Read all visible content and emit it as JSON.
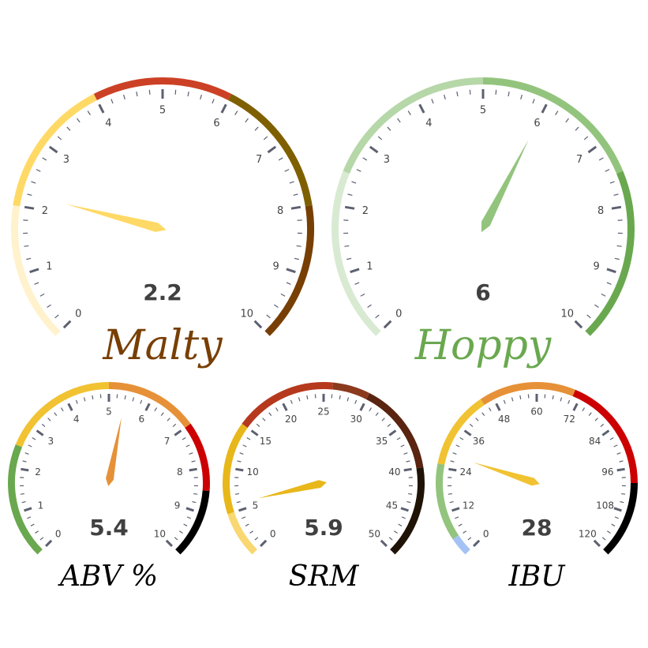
{
  "chart_data": [
    {
      "type": "gauge",
      "title": "Malty",
      "title_color": "#783f04",
      "min": 0,
      "max": 10,
      "major_step": 1,
      "minor_per_major": 5,
      "value": 2.2,
      "value_label": "2.2",
      "needle_color": "#ffd966",
      "bands": [
        {
          "from": 0,
          "to": 2,
          "color": "#fff2cc"
        },
        {
          "from": 2,
          "to": 4,
          "color": "#ffd966"
        },
        {
          "from": 4,
          "to": 6,
          "color": "#cc4125"
        },
        {
          "from": 6,
          "to": 8,
          "color": "#7f6000"
        },
        {
          "from": 8,
          "to": 10,
          "color": "#783f04"
        }
      ],
      "tick_labels": [
        "0",
        "1",
        "2",
        "3",
        "4",
        "5",
        "6",
        "7",
        "8",
        "9",
        "10"
      ]
    },
    {
      "type": "gauge",
      "title": "Hoppy",
      "title_color": "#6aa84f",
      "min": 0,
      "max": 10,
      "major_step": 1,
      "minor_per_major": 5,
      "value": 6,
      "value_label": "6",
      "needle_color": "#93c47d",
      "bands": [
        {
          "from": 0,
          "to": 2.5,
          "color": "#d9ead3"
        },
        {
          "from": 2.5,
          "to": 5,
          "color": "#b6d7a8"
        },
        {
          "from": 5,
          "to": 7.5,
          "color": "#93c47d"
        },
        {
          "from": 7.5,
          "to": 10,
          "color": "#6aa84f"
        }
      ],
      "tick_labels": [
        "0",
        "1",
        "2",
        "3",
        "4",
        "5",
        "6",
        "7",
        "8",
        "9",
        "10"
      ]
    },
    {
      "type": "gauge",
      "title": "ABV %",
      "title_color": "#000000",
      "min": 0,
      "max": 10,
      "major_step": 1,
      "minor_per_major": 5,
      "value": 5.4,
      "value_label": "5.4",
      "needle_color": "#e69138",
      "bands": [
        {
          "from": 0,
          "to": 2.5,
          "color": "#6aa84f"
        },
        {
          "from": 2.5,
          "to": 5,
          "color": "#f1c232"
        },
        {
          "from": 5,
          "to": 7,
          "color": "#e69138"
        },
        {
          "from": 7,
          "to": 8.5,
          "color": "#cc0000"
        },
        {
          "from": 8.5,
          "to": 10,
          "color": "#000000"
        }
      ],
      "tick_labels": [
        "0",
        "1",
        "2",
        "3",
        "4",
        "5",
        "6",
        "7",
        "8",
        "9",
        "10"
      ]
    },
    {
      "type": "gauge",
      "title": "SRM",
      "title_color": "#000000",
      "min": 0,
      "max": 50,
      "major_step": 5,
      "minor_per_major": 5,
      "value": 5.9,
      "value_label": "5.9",
      "needle_color": "#e8b71a",
      "bands": [
        {
          "from": 0,
          "to": 5,
          "color": "#f9d771"
        },
        {
          "from": 5,
          "to": 15,
          "color": "#e8b71a"
        },
        {
          "from": 15,
          "to": 26,
          "color": "#b6391e"
        },
        {
          "from": 26,
          "to": 30,
          "color": "#8b3a1e"
        },
        {
          "from": 30,
          "to": 40,
          "color": "#5a2410"
        },
        {
          "from": 40,
          "to": 50,
          "color": "#1f1305"
        }
      ],
      "tick_labels": [
        "0",
        "5",
        "10",
        "15",
        "20",
        "25",
        "30",
        "35",
        "40",
        "45",
        "50"
      ]
    },
    {
      "type": "gauge",
      "title": "IBU",
      "title_color": "#000000",
      "min": 0,
      "max": 120,
      "major_step": 12,
      "minor_per_major": 5,
      "value": 28,
      "value_label": "28",
      "needle_color": "#f1c232",
      "bands": [
        {
          "from": 0,
          "to": 5,
          "color": "#a4c2f4"
        },
        {
          "from": 5,
          "to": 25,
          "color": "#93c47d"
        },
        {
          "from": 25,
          "to": 45,
          "color": "#f1c232"
        },
        {
          "from": 45,
          "to": 70,
          "color": "#e69138"
        },
        {
          "from": 70,
          "to": 100,
          "color": "#cc0000"
        },
        {
          "from": 100,
          "to": 120,
          "color": "#000000"
        }
      ],
      "tick_labels": [
        "0",
        "12",
        "24",
        "36",
        "48",
        "60",
        "72",
        "84",
        "96",
        "108",
        "120"
      ]
    }
  ]
}
